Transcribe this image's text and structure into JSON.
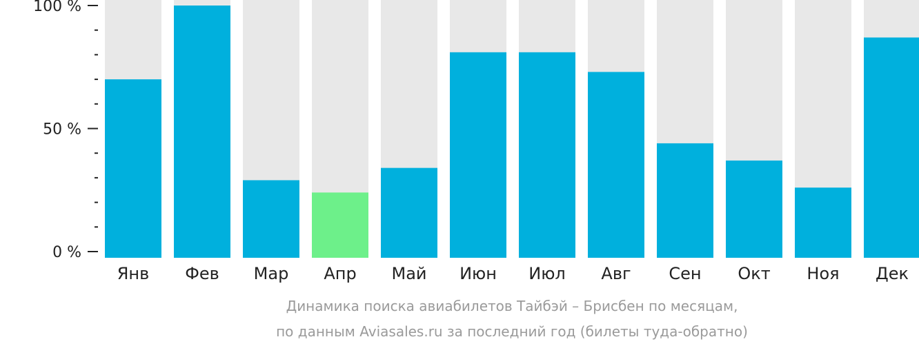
{
  "chart_data": {
    "type": "bar",
    "categories": [
      "Янв",
      "Фев",
      "Мар",
      "Апр",
      "Май",
      "Июн",
      "Июл",
      "Авг",
      "Сен",
      "Окт",
      "Ноя",
      "Дек"
    ],
    "values": [
      70,
      100,
      29,
      24,
      34,
      81,
      81,
      73,
      44,
      37,
      26,
      87
    ],
    "ylim": [
      0,
      100
    ],
    "yticks": [
      {
        "value": 0,
        "label": "0 %"
      },
      {
        "value": 50,
        "label": "50 %"
      },
      {
        "value": 100,
        "label": "100 %"
      }
    ],
    "minor_tick_step": 10,
    "highlight_index": 3,
    "caption_line1": "Динамика поиска авиабилетов Тайбэй – Брисбен по месяцам,",
    "caption_line2": "по данным Aviasales.ru за последний год (билеты туда-обратно)",
    "colors": {
      "bar": "#00b0dd",
      "highlight": "#6df08a",
      "background_bar": "#e8e8e8",
      "axis": "#222222"
    }
  }
}
